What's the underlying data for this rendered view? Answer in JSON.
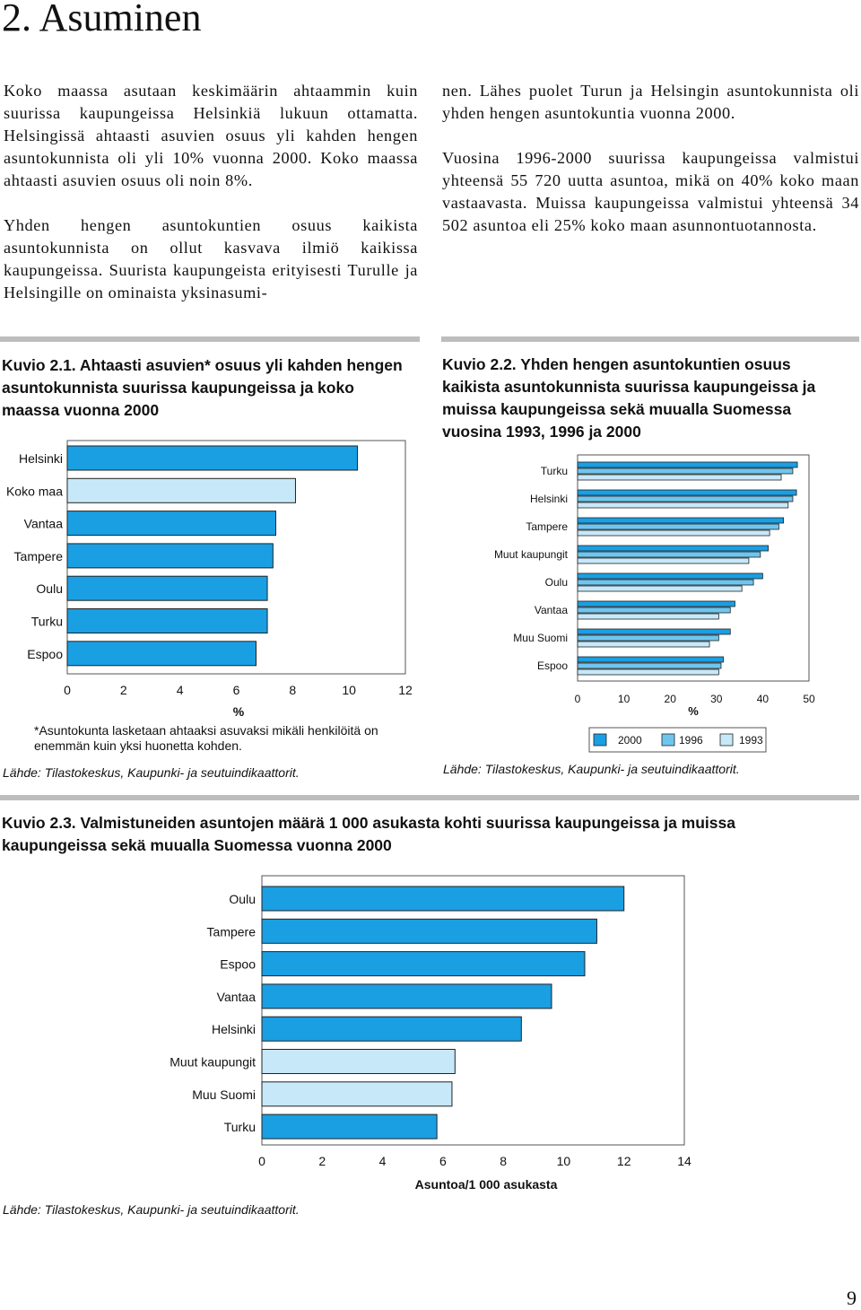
{
  "heading": "2. Asuminen",
  "left_paragraphs": [
    "Koko maassa asutaan keskimäärin ahtaammin kuin suurissa kaupungeissa Helsinkiä lukuun ottamatta. Helsingissä ahtaasti asuvien osuus yli kahden hengen asuntokunnista oli yli 10% vuonna 2000. Koko maassa ahtaasti asuvien osuus oli noin 8%.",
    "Yhden hengen asuntokuntien osuus kaikista asuntokunnista on ollut kasvava ilmiö kaikissa kaupungeissa. Suurista kaupungeista erityisesti Turulle ja Helsingille on ominaista yksinasumi-"
  ],
  "right_paragraphs": [
    "nen. Lähes puolet Turun ja Helsingin asuntokunnista oli yhden hengen asuntokuntia vuonna 2000.",
    "Vuosina 1996-2000 suurissa kaupungeissa valmistui yhteensä 55 720 uutta asuntoa, mikä on 40% koko maan vastaavasta. Muissa kaupungeissa valmistui yhteensä 34 502 asuntoa eli 25% koko maan asunnontuotannosta."
  ],
  "colors": {
    "dark": "#1a9fe3",
    "mid": "#6ec6ef",
    "light": "#c7e8f8",
    "rule": "#bdbdbd",
    "frame": "#555555"
  },
  "fig1": {
    "caption": "Kuvio 2.1. Ahtaasti asuvien* osuus yli kahden hengen asuntokunnista suurissa kaupungeissa ja koko maassa vuonna 2000",
    "footnote": "*Asuntokunta lasketaan ahtaaksi asuvaksi mikäli henkilöitä on enemmän kuin yksi huonetta kohden.",
    "source": "Lähde: Tilastokeskus, Kaupunki- ja seutuindikaattorit."
  },
  "fig2": {
    "caption": "Kuvio 2.2. Yhden hengen asuntokuntien osuus kaikista asuntokunnista suurissa kaupungeissa ja muissa kaupungeissa sekä muualla Suomessa vuosina 1993, 1996 ja 2000",
    "source": "Lähde: Tilastokeskus, Kaupunki- ja seutuindikaattorit."
  },
  "fig3": {
    "caption": "Kuvio 2.3. Valmistuneiden asuntojen määrä 1 000 asukasta kohti suurissa kaupungeissa ja muissa kaupungeissa sekä muualla Suomessa vuonna 2000",
    "source": "Lähde: Tilastokeskus, Kaupunki- ja seutuindikaattorit."
  },
  "page_number": "9",
  "chart_data": [
    {
      "type": "bar",
      "orientation": "horizontal",
      "categories": [
        "Helsinki",
        "Koko maa",
        "Vantaa",
        "Tampere",
        "Oulu",
        "Turku",
        "Espoo"
      ],
      "values": [
        10.3,
        8.1,
        7.4,
        7.3,
        7.1,
        7.1,
        6.7
      ],
      "highlight": "Koko maa",
      "xlabel": "%",
      "xticks": [
        "0",
        "2",
        "4",
        "6",
        "8",
        "10",
        "12"
      ],
      "xlim": [
        0,
        12
      ],
      "grid": false
    },
    {
      "type": "bar",
      "orientation": "horizontal",
      "categories": [
        "Turku",
        "Helsinki",
        "Tampere",
        "Muut kaupungit",
        "Oulu",
        "Vantaa",
        "Muu Suomi",
        "Espoo"
      ],
      "series": [
        {
          "name": "2000",
          "values": [
            47.5,
            47.3,
            44.5,
            41.2,
            40.0,
            34.0,
            33.0,
            31.5
          ]
        },
        {
          "name": "1996",
          "values": [
            46.5,
            46.5,
            43.5,
            39.5,
            38.0,
            33.0,
            30.5,
            31.0
          ]
        },
        {
          "name": "1993",
          "values": [
            44.0,
            45.5,
            41.5,
            37.0,
            35.5,
            30.5,
            28.5,
            30.5
          ]
        }
      ],
      "xlabel": "%",
      "xticks": [
        "0",
        "10",
        "20",
        "30",
        "40",
        "50"
      ],
      "xlim": [
        0,
        50
      ],
      "legend": "bottom",
      "grid": false
    },
    {
      "type": "bar",
      "orientation": "horizontal",
      "categories": [
        "Oulu",
        "Tampere",
        "Espoo",
        "Vantaa",
        "Helsinki",
        "Muut kaupungit",
        "Muu Suomi",
        "Turku"
      ],
      "values": [
        12.0,
        11.1,
        10.7,
        9.6,
        8.6,
        6.4,
        6.3,
        5.8
      ],
      "light_categories": [
        "Muut kaupungit",
        "Muu Suomi"
      ],
      "xlabel": "Asuntoa/1 000 asukasta",
      "xticks": [
        "0",
        "2",
        "4",
        "6",
        "8",
        "10",
        "12",
        "14"
      ],
      "xlim": [
        0,
        14
      ],
      "grid": false
    }
  ]
}
